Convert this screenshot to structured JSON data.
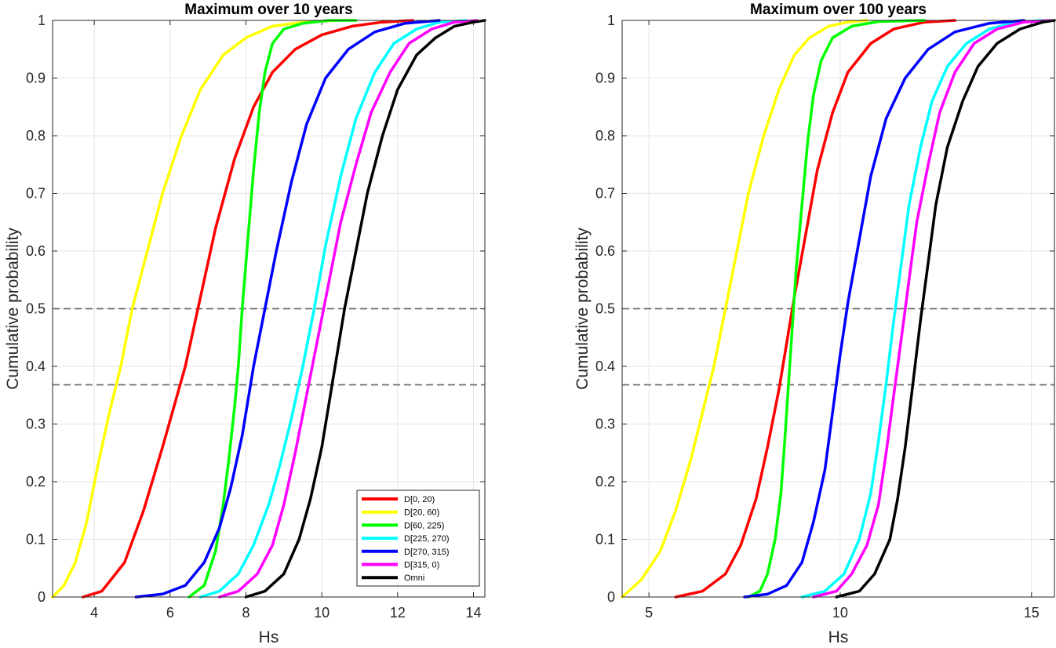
{
  "chart_data": [
    {
      "type": "line",
      "title": "Maximum over 10 years",
      "xlabel": "Hs",
      "ylabel": "Cumulative probability",
      "xlim": [
        2.9,
        14.3
      ],
      "ylim": [
        0,
        1
      ],
      "xticks": [
        "4",
        "6",
        "8",
        "10",
        "12",
        "14"
      ],
      "yticks": [
        "0",
        "0.1",
        "0.2",
        "0.3",
        "0.4",
        "0.5",
        "0.6",
        "0.7",
        "0.8",
        "0.9",
        "1"
      ],
      "grid": true,
      "reference_lines": [
        0.5,
        0.368
      ],
      "legend": {
        "placement": "bottom-right"
      },
      "series": [
        {
          "name": "D[0, 20)",
          "color": "#ff0000",
          "x": [
            3.7,
            4.2,
            4.8,
            5.3,
            5.8,
            6.1,
            6.4,
            6.8,
            7.2,
            7.7,
            8.2,
            8.7,
            9.3,
            10.0,
            10.8,
            11.6,
            12.4
          ],
          "y": [
            0,
            0.01,
            0.06,
            0.15,
            0.26,
            0.33,
            0.4,
            0.52,
            0.64,
            0.76,
            0.85,
            0.91,
            0.95,
            0.975,
            0.99,
            0.997,
            1.0
          ]
        },
        {
          "name": "D[20, 60)",
          "color": "#ffff00",
          "x": [
            2.9,
            3.2,
            3.5,
            3.8,
            4.1,
            4.4,
            4.7,
            5.0,
            5.4,
            5.8,
            6.3,
            6.8,
            7.4,
            8.0,
            8.7,
            9.5,
            10.4
          ],
          "y": [
            0,
            0.02,
            0.06,
            0.13,
            0.23,
            0.32,
            0.4,
            0.5,
            0.6,
            0.7,
            0.8,
            0.88,
            0.94,
            0.97,
            0.99,
            0.997,
            1.0
          ]
        },
        {
          "name": "D[60, 225)",
          "color": "#00ff00",
          "x": [
            6.5,
            6.9,
            7.2,
            7.4,
            7.55,
            7.7,
            7.8,
            7.9,
            8.05,
            8.2,
            8.35,
            8.5,
            8.7,
            9.0,
            9.5,
            10.2,
            10.9
          ],
          "y": [
            0,
            0.02,
            0.08,
            0.16,
            0.24,
            0.33,
            0.4,
            0.5,
            0.62,
            0.74,
            0.84,
            0.91,
            0.96,
            0.985,
            0.995,
            1.0,
            1.0
          ]
        },
        {
          "name": "D[225, 270)",
          "color": "#00ffff",
          "x": [
            6.8,
            7.3,
            7.8,
            8.2,
            8.6,
            8.9,
            9.2,
            9.5,
            9.8,
            10.1,
            10.5,
            10.9,
            11.4,
            11.9,
            12.5,
            13.1,
            13.8
          ],
          "y": [
            0,
            0.01,
            0.04,
            0.09,
            0.16,
            0.23,
            0.31,
            0.4,
            0.5,
            0.61,
            0.73,
            0.83,
            0.91,
            0.96,
            0.985,
            0.997,
            1.0
          ]
        },
        {
          "name": "D[270, 315)",
          "color": "#0000ff",
          "x": [
            5.1,
            5.8,
            6.4,
            6.9,
            7.3,
            7.6,
            7.9,
            8.2,
            8.5,
            8.8,
            9.2,
            9.6,
            10.1,
            10.7,
            11.4,
            12.2,
            13.1
          ],
          "y": [
            0,
            0.005,
            0.02,
            0.06,
            0.12,
            0.19,
            0.28,
            0.4,
            0.5,
            0.6,
            0.72,
            0.82,
            0.9,
            0.95,
            0.98,
            0.995,
            1.0
          ]
        },
        {
          "name": "D[315, 0)",
          "color": "#ff00ff",
          "x": [
            7.3,
            7.8,
            8.3,
            8.7,
            9.0,
            9.3,
            9.6,
            9.9,
            10.2,
            10.5,
            10.9,
            11.3,
            11.8,
            12.3,
            12.9,
            13.5,
            14.1
          ],
          "y": [
            0,
            0.01,
            0.04,
            0.09,
            0.16,
            0.25,
            0.35,
            0.45,
            0.55,
            0.65,
            0.75,
            0.84,
            0.91,
            0.96,
            0.985,
            0.997,
            1.0
          ]
        },
        {
          "name": "Omni",
          "color": "#000000",
          "x": [
            8.0,
            8.5,
            9.0,
            9.4,
            9.7,
            10.0,
            10.3,
            10.6,
            10.9,
            11.2,
            11.6,
            12.0,
            12.5,
            13.0,
            13.5,
            14.0,
            14.3
          ],
          "y": [
            0,
            0.01,
            0.04,
            0.1,
            0.17,
            0.26,
            0.38,
            0.5,
            0.6,
            0.7,
            0.8,
            0.88,
            0.94,
            0.97,
            0.99,
            0.997,
            1.0
          ]
        }
      ]
    },
    {
      "type": "line",
      "title": "Maximum over 100 years",
      "xlabel": "Hs",
      "ylabel": "Cumulative probability",
      "xlim": [
        4.3,
        15.6
      ],
      "ylim": [
        0,
        1
      ],
      "xticks": [
        "5",
        "10",
        "15"
      ],
      "yticks": [
        "0",
        "0.1",
        "0.2",
        "0.3",
        "0.4",
        "0.5",
        "0.6",
        "0.7",
        "0.8",
        "0.9",
        "1"
      ],
      "grid": true,
      "reference_lines": [
        0.5,
        0.368
      ],
      "series": [
        {
          "name": "D[0, 20)",
          "color": "#ff0000",
          "x": [
            5.7,
            6.4,
            7.0,
            7.4,
            7.8,
            8.1,
            8.4,
            8.6,
            8.8,
            9.1,
            9.4,
            9.8,
            10.2,
            10.8,
            11.4,
            12.2,
            13.0
          ],
          "y": [
            0,
            0.01,
            0.04,
            0.09,
            0.17,
            0.26,
            0.36,
            0.44,
            0.52,
            0.63,
            0.74,
            0.84,
            0.91,
            0.96,
            0.985,
            0.997,
            1.0
          ]
        },
        {
          "name": "D[20, 60)",
          "color": "#ffff00",
          "x": [
            4.3,
            4.8,
            5.3,
            5.7,
            6.1,
            6.4,
            6.7,
            7.0,
            7.3,
            7.6,
            8.0,
            8.4,
            8.8,
            9.2,
            9.7,
            10.2,
            10.7
          ],
          "y": [
            0,
            0.03,
            0.08,
            0.15,
            0.24,
            0.32,
            0.4,
            0.5,
            0.6,
            0.7,
            0.8,
            0.88,
            0.94,
            0.97,
            0.99,
            0.997,
            1.0
          ]
        },
        {
          "name": "D[60, 225)",
          "color": "#00ff00",
          "x": [
            7.6,
            7.9,
            8.1,
            8.3,
            8.45,
            8.55,
            8.65,
            8.75,
            8.85,
            9.0,
            9.15,
            9.3,
            9.5,
            9.8,
            10.3,
            11.0,
            12.2
          ],
          "y": [
            0,
            0.01,
            0.04,
            0.1,
            0.18,
            0.27,
            0.37,
            0.47,
            0.57,
            0.68,
            0.79,
            0.87,
            0.93,
            0.97,
            0.99,
            0.998,
            1.0
          ]
        },
        {
          "name": "D[225, 270)",
          "color": "#00ffff",
          "x": [
            9.0,
            9.6,
            10.1,
            10.5,
            10.8,
            11.0,
            11.2,
            11.4,
            11.6,
            11.8,
            12.1,
            12.4,
            12.8,
            13.3,
            13.9,
            14.6,
            15.3
          ],
          "y": [
            0,
            0.01,
            0.04,
            0.1,
            0.18,
            0.27,
            0.37,
            0.48,
            0.58,
            0.68,
            0.78,
            0.86,
            0.92,
            0.96,
            0.985,
            0.997,
            1.0
          ]
        },
        {
          "name": "D[270, 315)",
          "color": "#0000ff",
          "x": [
            7.5,
            8.1,
            8.6,
            9.0,
            9.3,
            9.6,
            9.8,
            10.0,
            10.2,
            10.5,
            10.8,
            11.2,
            11.7,
            12.3,
            13.0,
            13.9,
            14.8
          ],
          "y": [
            0,
            0.005,
            0.02,
            0.06,
            0.13,
            0.22,
            0.32,
            0.42,
            0.51,
            0.62,
            0.73,
            0.83,
            0.9,
            0.95,
            0.98,
            0.995,
            1.0
          ]
        },
        {
          "name": "D[315, 0)",
          "color": "#ff00ff",
          "x": [
            9.3,
            9.9,
            10.3,
            10.7,
            11.0,
            11.2,
            11.4,
            11.6,
            11.8,
            12.0,
            12.3,
            12.6,
            13.0,
            13.5,
            14.1,
            14.8,
            15.5
          ],
          "y": [
            0,
            0.01,
            0.04,
            0.09,
            0.16,
            0.25,
            0.35,
            0.45,
            0.55,
            0.65,
            0.75,
            0.84,
            0.91,
            0.96,
            0.985,
            0.997,
            1.0
          ]
        },
        {
          "name": "Omni",
          "color": "#000000",
          "x": [
            9.9,
            10.5,
            10.9,
            11.3,
            11.5,
            11.7,
            11.9,
            12.1,
            12.3,
            12.5,
            12.8,
            13.2,
            13.6,
            14.1,
            14.7,
            15.3,
            15.6
          ],
          "y": [
            0,
            0.01,
            0.04,
            0.1,
            0.17,
            0.26,
            0.37,
            0.48,
            0.58,
            0.68,
            0.78,
            0.86,
            0.92,
            0.96,
            0.985,
            0.997,
            1.0
          ]
        }
      ]
    }
  ]
}
